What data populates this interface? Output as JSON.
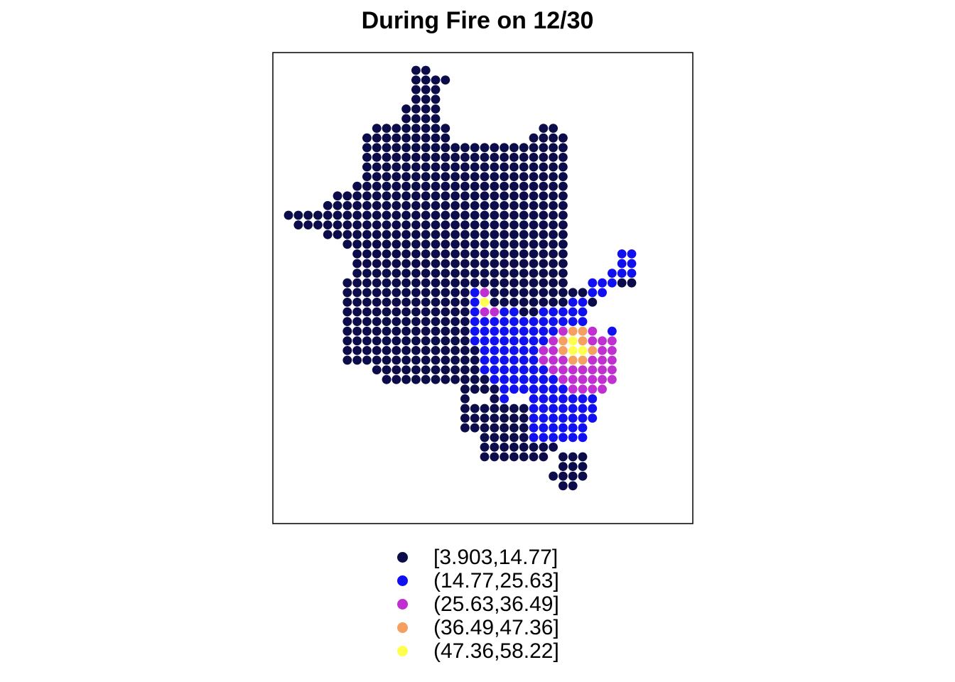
{
  "chart_data": {
    "type": "scatter",
    "title": "During Fire on 12/30",
    "legend": {
      "position": "bottom-center",
      "entries": [
        {
          "label": "[3.903,14.77]",
          "color": "#0c0c4a"
        },
        {
          "label": "(14.77,25.63]",
          "color": "#1010f0"
        },
        {
          "label": "(25.63,36.49]",
          "color": "#c030d0"
        },
        {
          "label": "(36.49,47.36]",
          "color": "#f4a060"
        },
        {
          "label": "(47.36,58.22]",
          "color": "#ffff50"
        }
      ]
    },
    "grid_rows": [
      {
        "row": 0,
        "runs": [
          [
            13,
            14
          ]
        ]
      },
      {
        "row": 1,
        "runs": [
          [
            13,
            16
          ]
        ]
      },
      {
        "row": 2,
        "runs": [
          [
            13,
            15
          ]
        ]
      },
      {
        "row": 3,
        "runs": [
          [
            13,
            15
          ]
        ]
      },
      {
        "row": 4,
        "runs": [
          [
            12,
            15
          ]
        ]
      },
      {
        "row": 5,
        "runs": [
          [
            12,
            15
          ]
        ]
      },
      {
        "row": 6,
        "runs": [
          [
            9,
            16
          ],
          [
            26,
            27
          ]
        ]
      },
      {
        "row": 7,
        "runs": [
          [
            8,
            16
          ],
          [
            25,
            28
          ]
        ]
      },
      {
        "row": 8,
        "runs": [
          [
            8,
            28
          ]
        ]
      },
      {
        "row": 9,
        "runs": [
          [
            8,
            28
          ]
        ]
      },
      {
        "row": 10,
        "runs": [
          [
            8,
            28
          ]
        ]
      },
      {
        "row": 11,
        "runs": [
          [
            8,
            28
          ]
        ]
      },
      {
        "row": 12,
        "runs": [
          [
            7,
            28
          ]
        ]
      },
      {
        "row": 13,
        "runs": [
          [
            5,
            28
          ]
        ]
      },
      {
        "row": 14,
        "runs": [
          [
            4,
            28
          ]
        ]
      },
      {
        "row": 15,
        "runs": [
          [
            0,
            28
          ]
        ]
      },
      {
        "row": 16,
        "runs": [
          [
            1,
            28
          ]
        ]
      },
      {
        "row": 17,
        "runs": [
          [
            4,
            28
          ]
        ]
      },
      {
        "row": 18,
        "runs": [
          [
            6,
            28
          ]
        ]
      },
      {
        "row": 19,
        "runs": [
          [
            7,
            28
          ],
          [
            35,
            35
          ]
        ]
      },
      {
        "row": 20,
        "runs": [
          [
            7,
            28
          ],
          [
            34,
            35
          ]
        ]
      },
      {
        "row": 21,
        "runs": [
          [
            7,
            28
          ],
          [
            33,
            35
          ]
        ]
      },
      {
        "row": 22,
        "runs": [
          [
            6,
            28
          ],
          [
            32,
            35
          ]
        ]
      },
      {
        "row": 23,
        "runs": [
          [
            6,
            32
          ]
        ]
      },
      {
        "row": 24,
        "runs": [
          [
            6,
            31
          ]
        ]
      },
      {
        "row": 25,
        "runs": [
          [
            6,
            30
          ]
        ]
      },
      {
        "row": 26,
        "runs": [
          [
            6,
            30
          ]
        ]
      },
      {
        "row": 27,
        "runs": [
          [
            6,
            31
          ],
          [
            33,
            33
          ]
        ]
      },
      {
        "row": 28,
        "runs": [
          [
            6,
            33
          ]
        ]
      },
      {
        "row": 29,
        "runs": [
          [
            6,
            33
          ]
        ]
      },
      {
        "row": 30,
        "runs": [
          [
            6,
            33
          ]
        ]
      },
      {
        "row": 31,
        "runs": [
          [
            9,
            33
          ]
        ]
      },
      {
        "row": 32,
        "runs": [
          [
            10,
            33
          ]
        ]
      },
      {
        "row": 33,
        "runs": [
          [
            18,
            21
          ],
          [
            24,
            32
          ]
        ]
      },
      {
        "row": 34,
        "runs": [
          [
            18,
            18
          ],
          [
            21,
            22
          ],
          [
            25,
            31
          ]
        ]
      },
      {
        "row": 35,
        "runs": [
          [
            18,
            31
          ]
        ]
      },
      {
        "row": 36,
        "runs": [
          [
            18,
            31
          ]
        ]
      },
      {
        "row": 37,
        "runs": [
          [
            18,
            30
          ]
        ]
      },
      {
        "row": 38,
        "runs": [
          [
            20,
            30
          ]
        ]
      },
      {
        "row": 39,
        "runs": [
          [
            20,
            27
          ]
        ]
      },
      {
        "row": 40,
        "runs": [
          [
            20,
            26
          ],
          [
            28,
            30
          ]
        ]
      },
      {
        "row": 41,
        "runs": [
          [
            28,
            30
          ]
        ]
      },
      {
        "row": 42,
        "runs": [
          [
            27,
            30
          ]
        ]
      },
      {
        "row": 43,
        "runs": [
          [
            28,
            29
          ]
        ]
      }
    ],
    "class_regions": {
      "(14.77,25.63]": [
        {
          "row": 19,
          "runs": [
            [
              34,
              35
            ]
          ]
        },
        {
          "row": 20,
          "runs": [
            [
              34,
              35
            ]
          ]
        },
        {
          "row": 21,
          "runs": [
            [
              33,
              35
            ]
          ]
        },
        {
          "row": 22,
          "runs": [
            [
              31,
              33
            ]
          ]
        },
        {
          "row": 23,
          "runs": [
            [
              19,
              20
            ],
            [
              31,
              32
            ]
          ]
        },
        {
          "row": 24,
          "runs": [
            [
              19,
              20
            ],
            [
              29,
              30
            ]
          ]
        },
        {
          "row": 25,
          "runs": [
            [
              19,
              23
            ],
            [
              26,
              30
            ]
          ]
        },
        {
          "row": 26,
          "runs": [
            [
              19,
              30
            ]
          ]
        },
        {
          "row": 27,
          "runs": [
            [
              19,
              30
            ],
            [
              33,
              33
            ]
          ]
        },
        {
          "row": 28,
          "runs": [
            [
              19,
              33
            ]
          ]
        },
        {
          "row": 29,
          "runs": [
            [
              20,
              33
            ]
          ]
        },
        {
          "row": 30,
          "runs": [
            [
              20,
              33
            ]
          ]
        },
        {
          "row": 31,
          "runs": [
            [
              20,
              33
            ]
          ]
        },
        {
          "row": 32,
          "runs": [
            [
              21,
              33
            ]
          ]
        },
        {
          "row": 33,
          "runs": [
            [
              22,
              32
            ]
          ]
        },
        {
          "row": 34,
          "runs": [
            [
              22,
              22
            ],
            [
              25,
              31
            ]
          ]
        },
        {
          "row": 35,
          "runs": [
            [
              25,
              31
            ]
          ]
        },
        {
          "row": 36,
          "runs": [
            [
              25,
              31
            ]
          ]
        },
        {
          "row": 37,
          "runs": [
            [
              25,
              30
            ]
          ]
        },
        {
          "row": 38,
          "runs": [
            [
              25,
              30
            ]
          ]
        }
      ],
      "(25.63,36.49]": [
        {
          "row": 23,
          "runs": [
            [
              20,
              20
            ]
          ]
        },
        {
          "row": 24,
          "runs": [
            [
              20,
              20
            ]
          ]
        },
        {
          "row": 25,
          "runs": [
            [
              20,
              21
            ]
          ]
        },
        {
          "row": 27,
          "runs": [
            [
              28,
              31
            ]
          ]
        },
        {
          "row": 28,
          "runs": [
            [
              27,
              33
            ]
          ]
        },
        {
          "row": 29,
          "runs": [
            [
              26,
              33
            ]
          ]
        },
        {
          "row": 30,
          "runs": [
            [
              26,
              33
            ]
          ]
        },
        {
          "row": 31,
          "runs": [
            [
              27,
              33
            ]
          ]
        },
        {
          "row": 32,
          "runs": [
            [
              28,
              33
            ]
          ]
        },
        {
          "row": 33,
          "runs": [
            [
              29,
              32
            ]
          ]
        }
      ],
      "(36.49,47.36]": [
        {
          "row": 27,
          "runs": [
            [
              29,
              30
            ]
          ]
        },
        {
          "row": 28,
          "runs": [
            [
              28,
              30
            ]
          ]
        },
        {
          "row": 29,
          "runs": [
            [
              28,
              31
            ]
          ]
        },
        {
          "row": 30,
          "runs": [
            [
              29,
              30
            ]
          ]
        }
      ],
      "(47.36,58.22]": [
        {
          "row": 24,
          "runs": [
            [
              20,
              20
            ]
          ]
        },
        {
          "row": 28,
          "runs": [
            [
              29,
              29
            ]
          ]
        },
        {
          "row": 29,
          "runs": [
            [
              29,
              30
            ]
          ]
        }
      ]
    }
  }
}
